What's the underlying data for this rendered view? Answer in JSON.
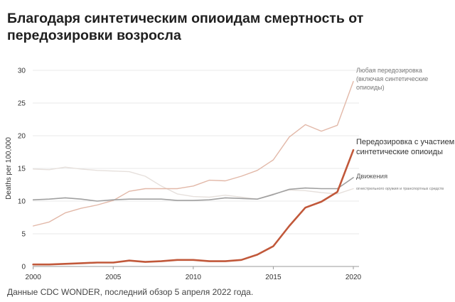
{
  "title": "Благодаря синтетическим опиоидам смертность от передозировки возросла",
  "source": "Данные CDC WONDER, последний обзор 5 апреля 2022 года.",
  "chart_data": {
    "type": "line",
    "title": "Благодаря синтетическим опиоидам смертность от передозировки возросла",
    "ylabel": "Deaths per 100,000",
    "xlabel": "",
    "xlim": [
      1999.97,
      2020
    ],
    "ylim": [
      0,
      30
    ],
    "x_ticks": [
      "2000",
      "2005",
      "2010",
      "2015",
      "2020"
    ],
    "y_ticks": [
      "0",
      "5",
      "10",
      "15",
      "20",
      "25",
      "30"
    ],
    "grid": "horizontal",
    "legend": "direct labels at line ends",
    "x": [
      2000,
      2001,
      2002,
      2003,
      2004,
      2005,
      2006,
      2007,
      2008,
      2009,
      2010,
      2011,
      2012,
      2013,
      2014,
      2015,
      2016,
      2017,
      2018,
      2019,
      2020
    ],
    "series": [
      {
        "name": "Любая передозировка (включая синтетические опиоиды)",
        "label_lines": [
          "Любая передозировка",
          "(включая синтетические",
          "опиоиды)"
        ],
        "color": "#e2b8a8",
        "width": 1.4,
        "values": [
          6.2,
          6.8,
          8.2,
          8.9,
          9.4,
          10.1,
          11.5,
          11.9,
          11.9,
          11.9,
          12.3,
          13.2,
          13.1,
          13.8,
          14.7,
          16.3,
          19.8,
          21.7,
          20.7,
          21.6,
          28.3
        ]
      },
      {
        "name": "Передозировка с участием синтетические опиоиды",
        "label_lines": [
          "Передозировка с участием",
          "синтетические опиоиды"
        ],
        "color": "#c1583a",
        "width": 2.6,
        "values": [
          0.3,
          0.3,
          0.4,
          0.5,
          0.6,
          0.6,
          0.9,
          0.7,
          0.8,
          1.0,
          1.0,
          0.8,
          0.8,
          1.0,
          1.8,
          3.1,
          6.2,
          9.0,
          9.9,
          11.4,
          17.8
        ]
      },
      {
        "name": "Движения",
        "label_lines": [
          "Движения"
        ],
        "color": "#a0a0a0",
        "width": 1.6,
        "values": [
          10.2,
          10.3,
          10.5,
          10.3,
          10.0,
          10.2,
          10.3,
          10.3,
          10.3,
          10.1,
          10.1,
          10.2,
          10.5,
          10.4,
          10.3,
          11.0,
          11.8,
          12.0,
          11.9,
          11.9,
          13.6
        ]
      },
      {
        "name": "огнестрельного оружия и транспортных средств",
        "label_lines": [
          "огнестрельного оружия и транспортных средств"
        ],
        "color": "#e6e0dc",
        "width": 1.4,
        "values": [
          14.9,
          14.8,
          15.2,
          14.9,
          14.7,
          14.6,
          14.5,
          13.8,
          12.3,
          11.1,
          10.7,
          10.6,
          10.9,
          10.6,
          10.3,
          11.1,
          11.7,
          11.6,
          11.3,
          11.1,
          11.9
        ]
      }
    ]
  }
}
